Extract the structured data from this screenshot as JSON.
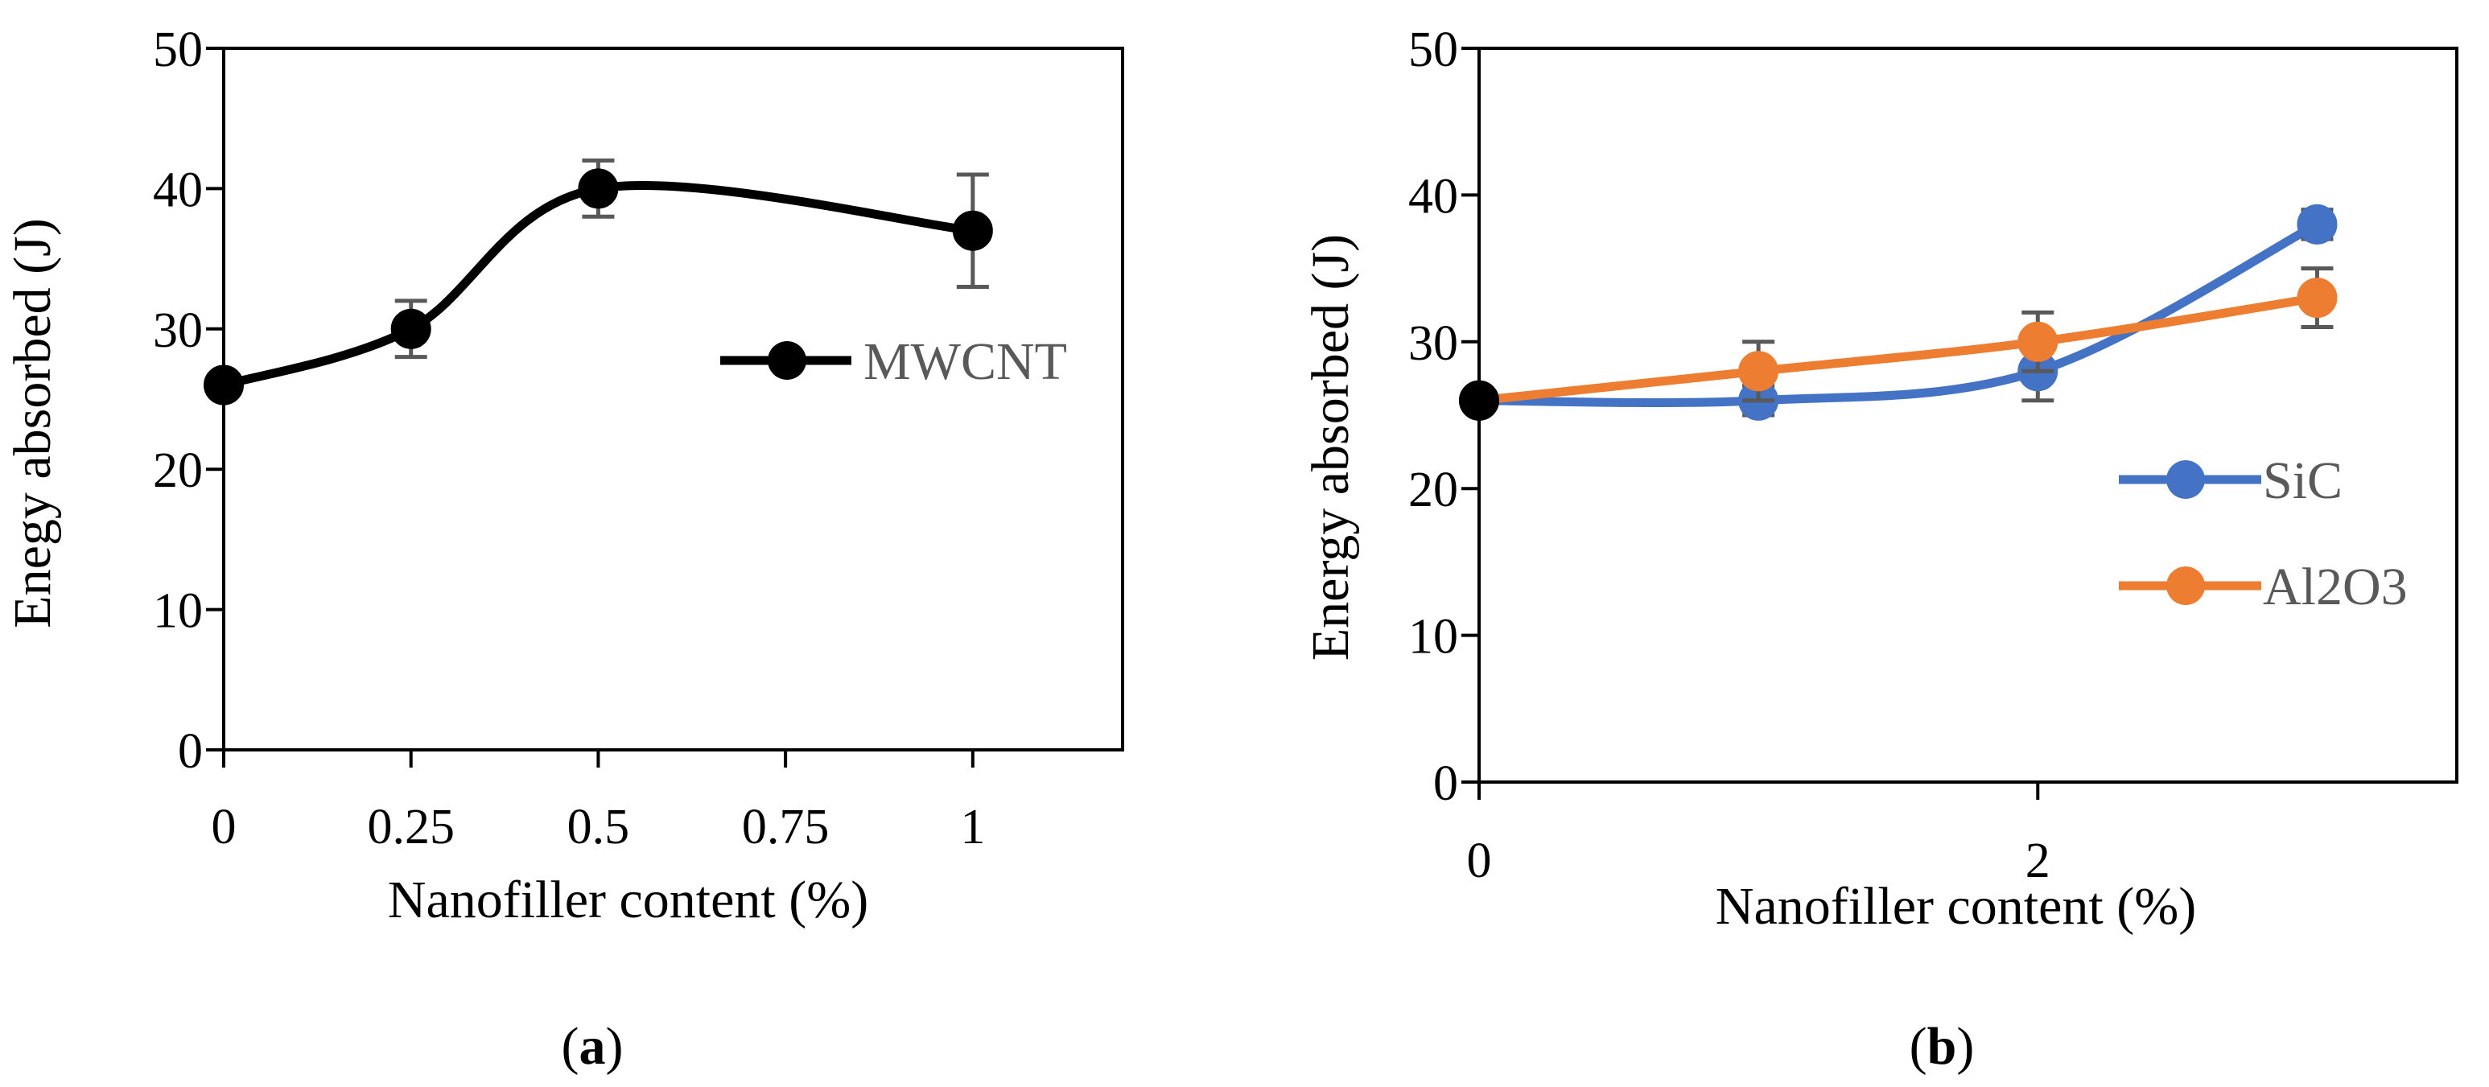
{
  "chart_data": [
    {
      "type": "line",
      "smooth": true,
      "x": [
        0,
        0.25,
        0.5,
        1
      ],
      "xticks": [
        "0",
        "0.25",
        "0.5",
        "0.75",
        "1"
      ],
      "xlim": [
        0,
        1.2
      ],
      "ylim": [
        0,
        50
      ],
      "yticks": [
        "0",
        "10",
        "20",
        "30",
        "40",
        "50"
      ],
      "xlabel": "Nanofiller content (%)",
      "ylabel": "Enegy absorbed (J)",
      "caption": {
        "open": "(",
        "letter": "a",
        "close": ")"
      },
      "legend_position": "center-right",
      "grid": false,
      "series": [
        {
          "name": "MWCNT",
          "color": "#000000",
          "values": [
            26,
            30,
            40,
            37
          ],
          "error": [
            0,
            2,
            2,
            4
          ]
        }
      ]
    },
    {
      "type": "line",
      "smooth": true,
      "x": [
        0,
        1,
        2,
        3
      ],
      "xticks": [
        "0",
        "2"
      ],
      "xtick_values": [
        0,
        2
      ],
      "xlim": [
        0,
        3.5
      ],
      "ylim": [
        0,
        50
      ],
      "yticks": [
        "0",
        "10",
        "20",
        "30",
        "40",
        "50"
      ],
      "xlabel": "Nanofiller content (%)",
      "ylabel": "Energy absorbed (J)",
      "caption": {
        "open": "(",
        "letter": "b",
        "close": ")"
      },
      "legend_position": "bottom-right",
      "grid": false,
      "series": [
        {
          "name": "SiC",
          "color": "#4472C4",
          "values": [
            26,
            26,
            28,
            38
          ],
          "error": [
            0,
            1,
            2,
            1
          ]
        },
        {
          "name": "Al2O3",
          "color": "#ED7D31",
          "values": [
            26,
            28,
            30,
            33
          ],
          "error": [
            0,
            2,
            2,
            2
          ]
        }
      ]
    }
  ]
}
